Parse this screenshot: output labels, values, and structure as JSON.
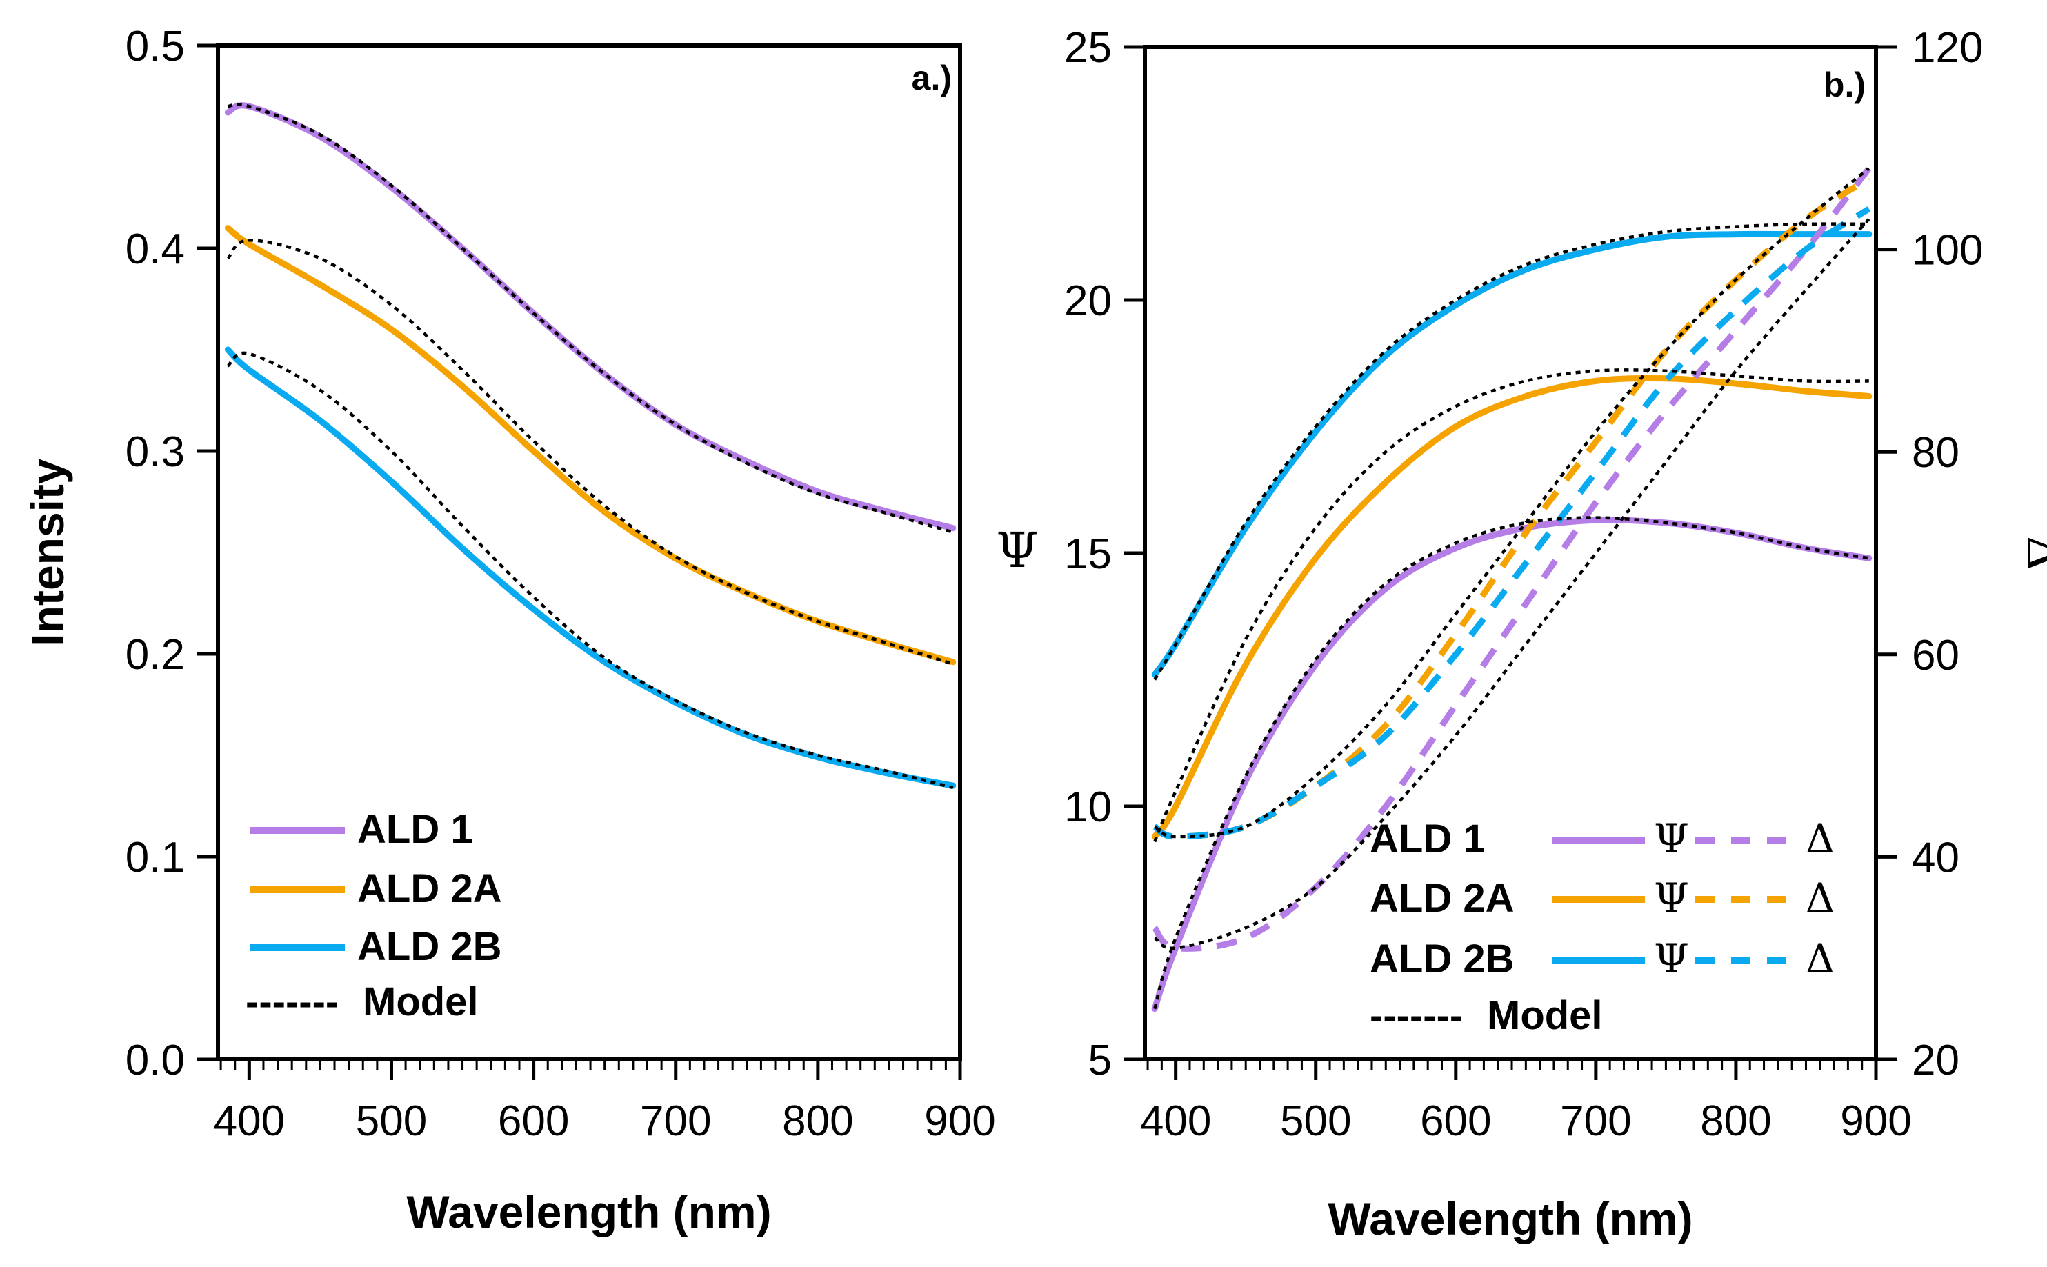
{
  "chart_data": [
    {
      "type": "line",
      "panel_label": "a.)",
      "xlabel": "Wavelength (nm)",
      "ylabel": "Intensity",
      "xlim": [
        378,
        900
      ],
      "ylim": [
        0.0,
        0.5
      ],
      "xticks": [
        400,
        500,
        600,
        700,
        800,
        900
      ],
      "yticks": [
        0.0,
        0.1,
        0.2,
        0.3,
        0.4,
        0.5
      ],
      "xtick_labels": [
        "400",
        "500",
        "600",
        "700",
        "800",
        "900"
      ],
      "ytick_labels": [
        "0.0",
        "0.1",
        "0.2",
        "0.3",
        "0.4",
        "0.5"
      ],
      "x": [
        385,
        400,
        450,
        500,
        550,
        600,
        650,
        700,
        750,
        800,
        850,
        895
      ],
      "series": [
        {
          "name": "ALD 1",
          "color": "#b57ee6",
          "style": "solid",
          "values": [
            0.467,
            0.47,
            0.455,
            0.43,
            0.4,
            0.368,
            0.338,
            0.313,
            0.295,
            0.28,
            0.27,
            0.262
          ]
        },
        {
          "name": "ALD 2A",
          "color": "#f5a300",
          "style": "solid",
          "values": [
            0.41,
            0.402,
            0.382,
            0.36,
            0.332,
            0.3,
            0.27,
            0.247,
            0.23,
            0.216,
            0.205,
            0.196
          ]
        },
        {
          "name": "ALD 2B",
          "color": "#0aaaf0",
          "style": "solid",
          "values": [
            0.35,
            0.34,
            0.315,
            0.285,
            0.252,
            0.222,
            0.196,
            0.176,
            0.16,
            0.149,
            0.141,
            0.135
          ]
        },
        {
          "name": "Model ALD 1",
          "color": "#000000",
          "style": "dotted",
          "values": [
            0.47,
            0.47,
            0.456,
            0.431,
            0.4,
            0.368,
            0.338,
            0.313,
            0.294,
            0.279,
            0.269,
            0.26
          ]
        },
        {
          "name": "Model ALD 2A",
          "color": "#000000",
          "style": "dotted",
          "values": [
            0.395,
            0.404,
            0.395,
            0.372,
            0.34,
            0.305,
            0.273,
            0.248,
            0.23,
            0.216,
            0.205,
            0.195
          ]
        },
        {
          "name": "Model ALD 2B",
          "color": "#000000",
          "style": "dotted",
          "values": [
            0.342,
            0.348,
            0.33,
            0.3,
            0.263,
            0.228,
            0.198,
            0.177,
            0.161,
            0.15,
            0.142,
            0.134
          ]
        }
      ],
      "legend": {
        "position": "bottom-left",
        "entries": [
          {
            "label": "ALD 1",
            "color": "#b57ee6",
            "style": "solid"
          },
          {
            "label": "ALD 2A",
            "color": "#f5a300",
            "style": "solid"
          },
          {
            "label": "ALD 2B",
            "color": "#0aaaf0",
            "style": "solid"
          },
          {
            "label": "Model",
            "color": "#000000",
            "style": "dashed",
            "dash_text": "-------"
          }
        ]
      }
    },
    {
      "type": "line",
      "panel_label": "b.)",
      "xlabel": "Wavelength (nm)",
      "ylabel": "Ψ",
      "ylabel_right": "Δ",
      "xlim": [
        378,
        900
      ],
      "ylim": [
        5,
        25
      ],
      "ylim_right": [
        20,
        120
      ],
      "xticks": [
        400,
        500,
        600,
        700,
        800,
        900
      ],
      "yticks": [
        5,
        10,
        15,
        20,
        25
      ],
      "yticks_right": [
        20,
        40,
        60,
        80,
        100,
        120
      ],
      "xtick_labels": [
        "400",
        "500",
        "600",
        "700",
        "800",
        "900"
      ],
      "ytick_labels": [
        "5",
        "10",
        "15",
        "20",
        "25"
      ],
      "ytick_labels_right": [
        "20",
        "40",
        "60",
        "80",
        "100",
        "120"
      ],
      "x": [
        385,
        400,
        450,
        500,
        550,
        600,
        650,
        700,
        750,
        800,
        850,
        895
      ],
      "series": [
        {
          "name": "ALD 1 Ψ",
          "axis": "left",
          "color": "#b57ee6",
          "style": "solid",
          "values": [
            6.0,
            7.2,
            10.5,
            12.8,
            14.3,
            15.1,
            15.5,
            15.65,
            15.6,
            15.4,
            15.1,
            14.9
          ]
        },
        {
          "name": "ALD 2A Ψ",
          "axis": "left",
          "color": "#f5a300",
          "style": "solid",
          "values": [
            9.4,
            10.0,
            12.8,
            14.9,
            16.4,
            17.5,
            18.1,
            18.4,
            18.45,
            18.35,
            18.2,
            18.1
          ]
        },
        {
          "name": "ALD 2B Ψ",
          "axis": "left",
          "color": "#0aaaf0",
          "style": "solid",
          "values": [
            12.6,
            13.2,
            15.5,
            17.4,
            18.9,
            19.9,
            20.6,
            21.0,
            21.25,
            21.3,
            21.3,
            21.3
          ]
        },
        {
          "name": "ALD 1 Δ",
          "axis": "right",
          "color": "#b57ee6",
          "style": "dashed",
          "values": [
            33,
            31,
            32,
            37,
            45,
            55,
            65,
            75,
            84,
            92,
            100,
            108
          ]
        },
        {
          "name": "ALD 2A Δ",
          "axis": "right",
          "color": "#f5a300",
          "style": "dashed",
          "values": [
            43,
            42,
            43,
            47,
            53,
            62,
            72,
            81,
            90,
            97,
            103,
            107
          ]
        },
        {
          "name": "ALD 2B Δ",
          "axis": "right",
          "color": "#0aaaf0",
          "style": "dashed",
          "values": [
            43,
            42,
            43,
            47,
            52,
            60,
            69,
            78,
            87,
            94,
            100,
            104
          ]
        },
        {
          "name": "Model ALD 1 Ψ",
          "axis": "left",
          "color": "#000000",
          "style": "dotted",
          "values": [
            6.0,
            7.4,
            10.6,
            12.9,
            14.4,
            15.2,
            15.6,
            15.7,
            15.6,
            15.4,
            15.1,
            14.9
          ]
        },
        {
          "name": "Model ALD 2A Ψ",
          "axis": "left",
          "color": "#000000",
          "style": "dotted",
          "values": [
            9.3,
            10.3,
            13.3,
            15.5,
            17.0,
            17.9,
            18.4,
            18.6,
            18.6,
            18.5,
            18.4,
            18.4
          ]
        },
        {
          "name": "Model ALD 2B Ψ",
          "axis": "left",
          "color": "#000000",
          "style": "dotted",
          "values": [
            12.5,
            13.2,
            15.6,
            17.5,
            19.0,
            20.0,
            20.7,
            21.1,
            21.35,
            21.45,
            21.5,
            21.5
          ]
        },
        {
          "name": "Model ALD 1 Δ",
          "axis": "right",
          "color": "#000000",
          "style": "dotted",
          "values": [
            32,
            31,
            33,
            37,
            44,
            52,
            61,
            70,
            79,
            88,
            96,
            103
          ]
        },
        {
          "name": "Model ALD 2 Δ",
          "axis": "right",
          "color": "#000000",
          "style": "dotted",
          "values": [
            43,
            42,
            43,
            48,
            55,
            64,
            73,
            82,
            90,
            97,
            103,
            108
          ]
        }
      ],
      "legend": {
        "position": "bottom-right",
        "psi_symbol": "Ψ",
        "delta_symbol": "Δ",
        "entries": [
          {
            "label": "ALD 1",
            "color": "#b57ee6"
          },
          {
            "label": "ALD 2A",
            "color": "#f5a300"
          },
          {
            "label": "ALD 2B",
            "color": "#0aaaf0"
          }
        ],
        "model": {
          "label": "Model",
          "color": "#000000",
          "dash_text": "-------"
        }
      }
    }
  ]
}
